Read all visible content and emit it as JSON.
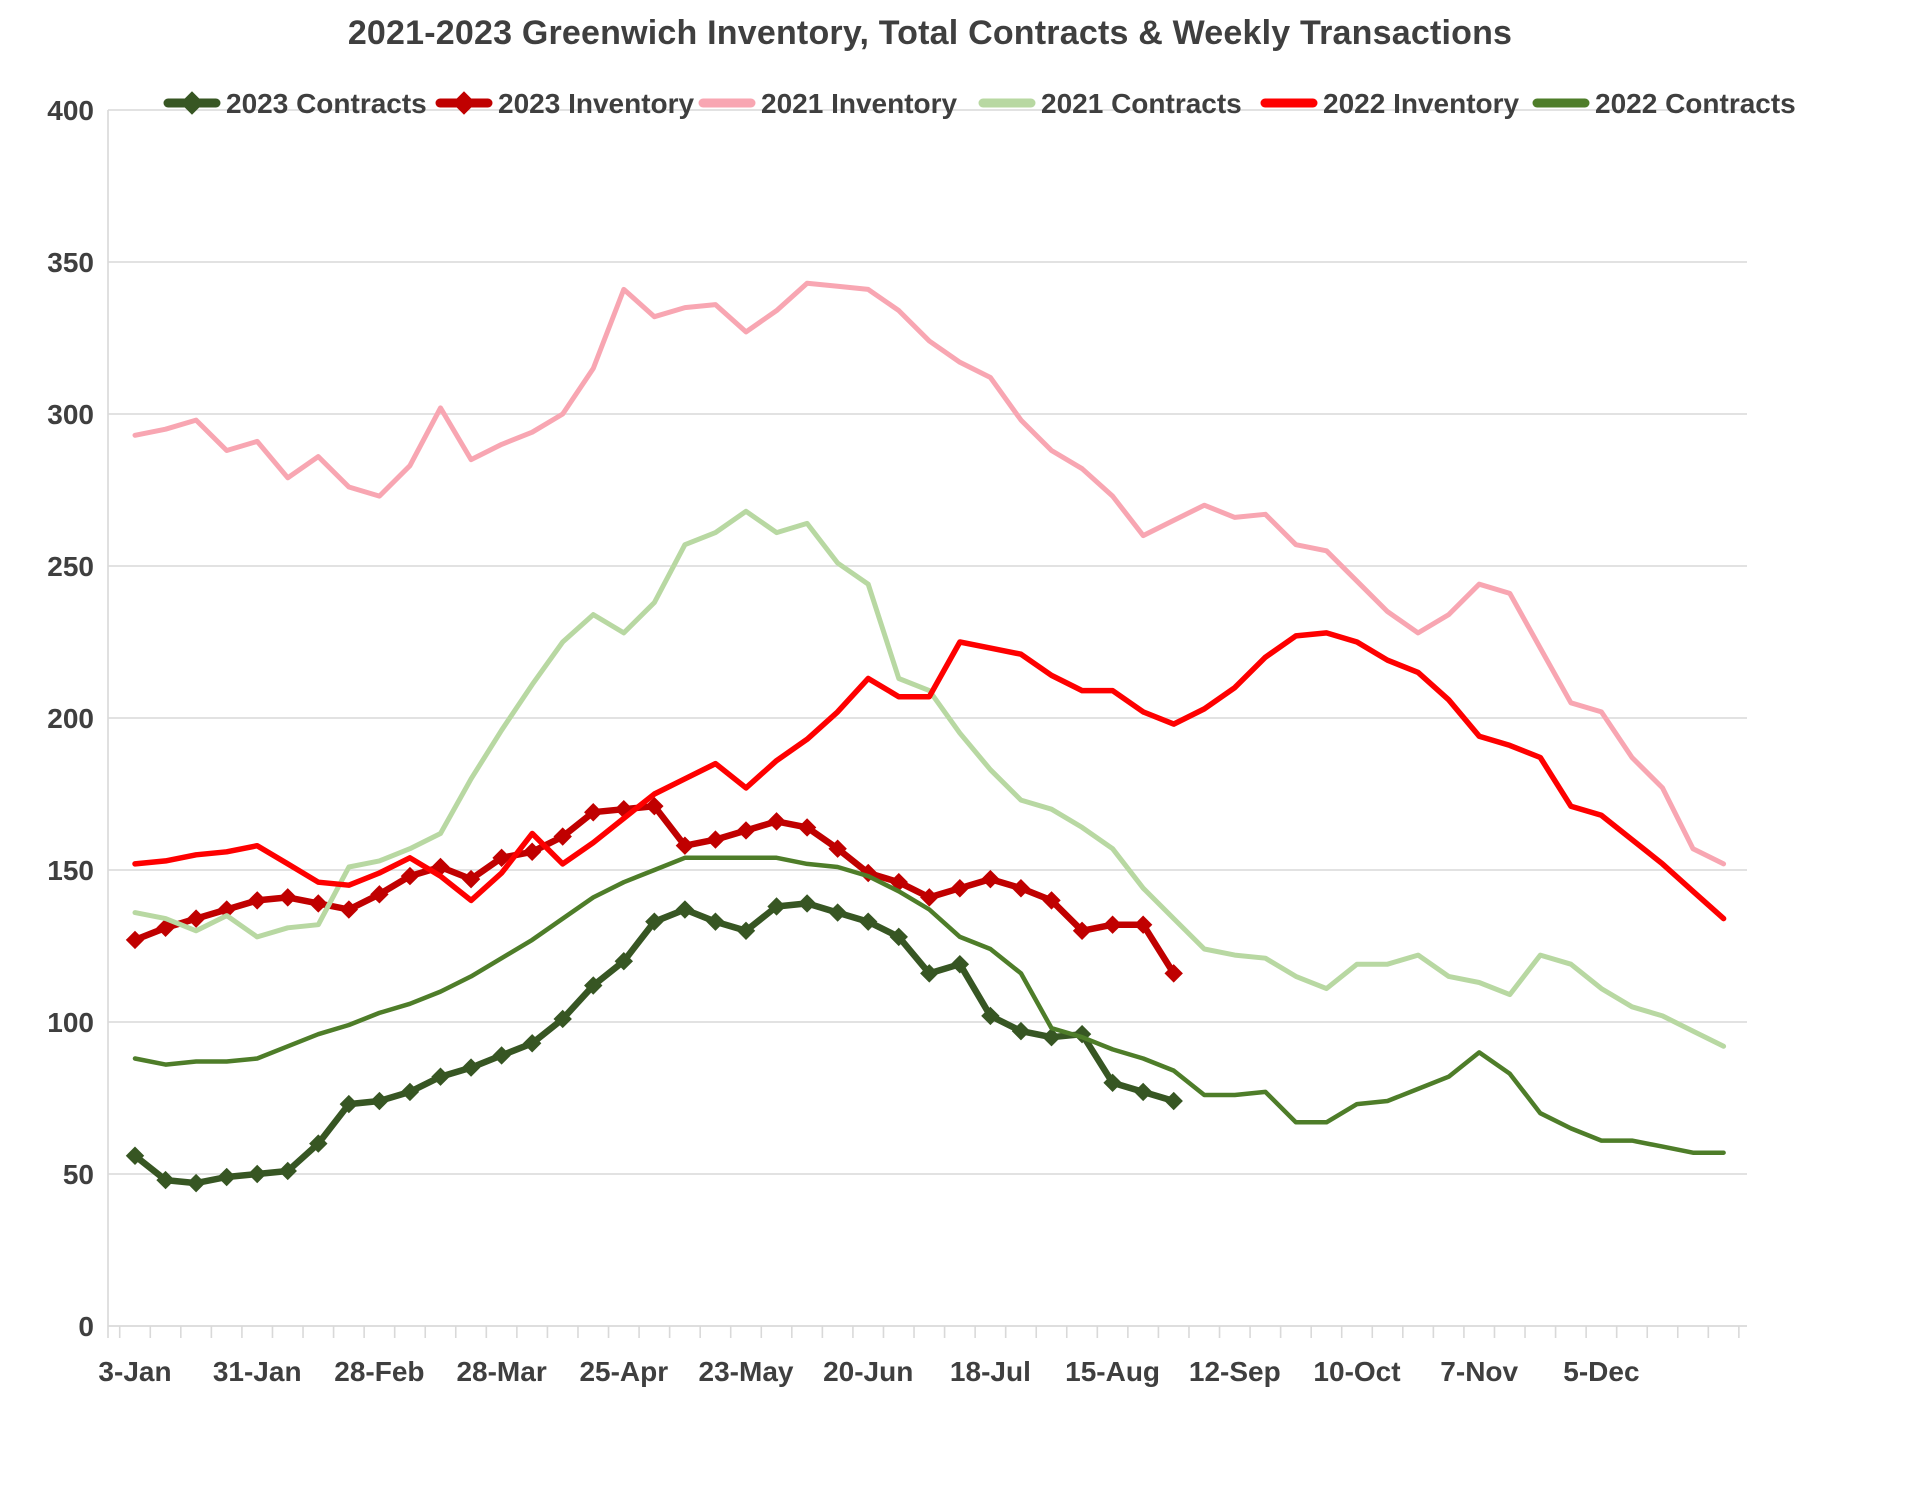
{
  "chart_data": {
    "type": "line",
    "title": "2021-2023 Greenwich Inventory, Total Contracts & Weekly Transactions",
    "x_axis": {
      "tick_labels": [
        "3-Jan",
        "31-Jan",
        "28-Feb",
        "28-Mar",
        "25-Apr",
        "23-May",
        "20-Jun",
        "18-Jul",
        "15-Aug",
        "12-Sep",
        "10-Oct",
        "7-Nov",
        "5-Dec"
      ],
      "label_interval_weeks": 4,
      "total_weeks": 53,
      "grid": false
    },
    "y_axis": {
      "min": 0,
      "max": 400,
      "step": 50,
      "tick_labels": [
        "0",
        "50",
        "100",
        "150",
        "200",
        "250",
        "300",
        "350",
        "400"
      ],
      "grid": true
    },
    "legend_position": "top",
    "colors": {
      "text": "#3f3f3f",
      "grid": "#d9d9d9",
      "dark_green": "#375623",
      "dark_red": "#c00000",
      "pink": "#f8a6b2",
      "light_green": "#b8d8a2",
      "bright_red": "#fe0000",
      "medium_green": "#4e7d29"
    },
    "series": [
      {
        "name": "2023 Contracts",
        "color_key": "dark_green",
        "marker": "diamond",
        "stroke_width": 6.5,
        "values": [
          56,
          48,
          47,
          49,
          50,
          51,
          60,
          73,
          74,
          77,
          82,
          85,
          89,
          93,
          101,
          112,
          120,
          133,
          137,
          133,
          130,
          138,
          139,
          136,
          133,
          128,
          116,
          119,
          102,
          97,
          95,
          96,
          80,
          77,
          74
        ]
      },
      {
        "name": "2023 Inventory",
        "color_key": "dark_red",
        "marker": "diamond",
        "stroke_width": 6.5,
        "values": [
          127,
          131,
          134,
          137,
          140,
          141,
          139,
          137,
          142,
          148,
          151,
          147,
          154,
          156,
          161,
          169,
          170,
          171,
          158,
          160,
          163,
          166,
          164,
          157,
          149,
          146,
          141,
          144,
          147,
          144,
          140,
          130,
          132,
          132,
          116
        ]
      },
      {
        "name": "2021 Inventory",
        "color_key": "pink",
        "marker": "none",
        "stroke_width": 5,
        "values": [
          293,
          295,
          298,
          288,
          291,
          279,
          286,
          276,
          273,
          283,
          302,
          285,
          290,
          294,
          300,
          315,
          341,
          332,
          335,
          336,
          327,
          334,
          343,
          342,
          341,
          334,
          324,
          317,
          312,
          298,
          288,
          282,
          273,
          260,
          265,
          270,
          266,
          267,
          257,
          255,
          245,
          235,
          228,
          234,
          244,
          241,
          223,
          205,
          202,
          187,
          177,
          157,
          152
        ]
      },
      {
        "name": "2021 Contracts",
        "color_key": "light_green",
        "marker": "none",
        "stroke_width": 5,
        "values": [
          136,
          134,
          130,
          135,
          128,
          131,
          132,
          151,
          153,
          157,
          162,
          180,
          196,
          211,
          225,
          234,
          228,
          238,
          257,
          261,
          268,
          261,
          264,
          251,
          244,
          213,
          209,
          195,
          183,
          173,
          170,
          164,
          157,
          144,
          134,
          124,
          122,
          121,
          115,
          111,
          119,
          119,
          122,
          115,
          113,
          109,
          122,
          119,
          111,
          105,
          102,
          97,
          92
        ]
      },
      {
        "name": "2022 Inventory",
        "color_key": "bright_red",
        "marker": "none",
        "stroke_width": 5.5,
        "values": [
          152,
          153,
          155,
          156,
          158,
          152,
          146,
          145,
          149,
          154,
          148,
          140,
          149,
          162,
          152,
          159,
          167,
          175,
          180,
          185,
          177,
          186,
          193,
          202,
          213,
          207,
          207,
          225,
          223,
          221,
          214,
          209,
          209,
          202,
          198,
          203,
          210,
          220,
          227,
          228,
          225,
          219,
          215,
          206,
          194,
          191,
          187,
          171,
          168,
          160,
          152,
          143,
          134
        ]
      },
      {
        "name": "2022 Contracts",
        "color_key": "medium_green",
        "marker": "none",
        "stroke_width": 4.5,
        "values": [
          88,
          86,
          87,
          87,
          88,
          92,
          96,
          99,
          103,
          106,
          110,
          115,
          121,
          127,
          134,
          141,
          146,
          150,
          154,
          154,
          154,
          154,
          152,
          151,
          148,
          143,
          137,
          128,
          124,
          116,
          98,
          95,
          91,
          88,
          84,
          76,
          76,
          77,
          67,
          67,
          73,
          74,
          78,
          82,
          90,
          83,
          70,
          65,
          61,
          61,
          59,
          57,
          57
        ]
      }
    ]
  }
}
